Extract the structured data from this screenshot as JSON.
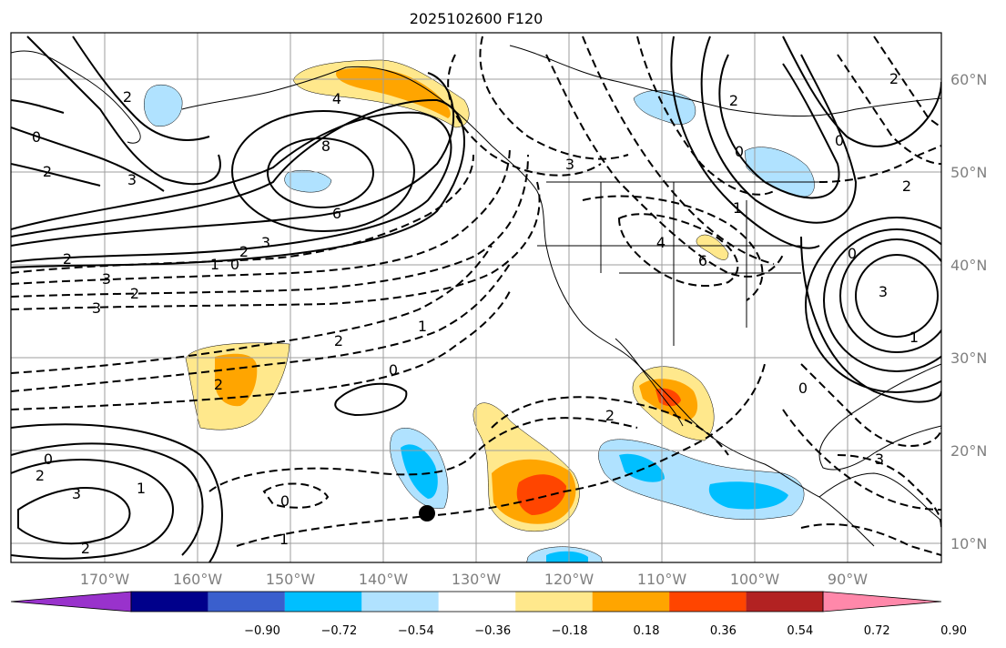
{
  "title": "2025102600 F120",
  "lon_labels": [
    "170°W",
    "160°W",
    "150°W",
    "140°W",
    "130°W",
    "120°W",
    "110°W",
    "100°W",
    "90°W"
  ],
  "lat_labels": [
    "60°N",
    "50°N",
    "40°N",
    "30°N",
    "20°N",
    "10°N"
  ],
  "colorbar": {
    "tick_labels": [
      "−0.90",
      "−0.72",
      "−0.54",
      "−0.36",
      "−0.18",
      "0.18",
      "0.36",
      "0.54",
      "0.72",
      "0.90"
    ],
    "colors": [
      "#9932cc",
      "#00008b",
      "#3a5fcd",
      "#00bfff",
      "#b0e2ff",
      "#ffffff",
      "#ffe88c",
      "#ffa500",
      "#ff4500",
      "#b22222",
      "#ff88aa"
    ]
  },
  "contour_labels": [
    "2",
    "0",
    "2",
    "3",
    "4",
    "8",
    "6",
    "3",
    "2",
    "1",
    "0",
    "2",
    "3",
    "2",
    "3",
    "2",
    "1",
    "0",
    "2",
    "0",
    "2",
    "3",
    "1",
    "2",
    "1",
    "0",
    "2",
    "0",
    "3",
    "0",
    "2",
    "0",
    "1",
    "6",
    "4",
    "3",
    "1",
    "0",
    "2",
    "2",
    "3"
  ],
  "marker": "station-dot"
}
